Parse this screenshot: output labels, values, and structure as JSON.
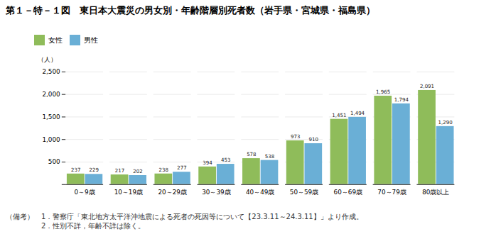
{
  "chart_data": {
    "type": "bar",
    "title": "第１－特－１図　東日本大震災の男女別・年齢階層別死者数（岩手県・宮城県・福島県）",
    "ylabel": "（人）",
    "categories": [
      "0～9歳",
      "10～19歳",
      "20～29歳",
      "30～39歳",
      "40～49歳",
      "50～59歳",
      "60～69歳",
      "70～79歳",
      "80歳以上"
    ],
    "series": [
      {
        "name": "女性",
        "color": "#8fbc5a",
        "values": [
          237,
          217,
          238,
          394,
          578,
          973,
          1451,
          1965,
          2091
        ],
        "value_labels": [
          "237",
          "217",
          "238",
          "394",
          "578",
          "973",
          "1,451",
          "1,965",
          "2,091"
        ]
      },
      {
        "name": "男性",
        "color": "#6aafd6",
        "values": [
          229,
          202,
          277,
          453,
          538,
          910,
          1494,
          1794,
          1290
        ],
        "value_labels": [
          "229",
          "202",
          "277",
          "453",
          "538",
          "910",
          "1,494",
          "1,794",
          "1,290"
        ]
      }
    ],
    "ylim": [
      0,
      2500
    ],
    "yticks": [
      {
        "value": 0,
        "label": ""
      },
      500,
      {
        "value": 1000,
        "label": "1,000"
      },
      {
        "value": 1500,
        "label": "1,500"
      },
      {
        "value": 2000,
        "label": "2,000"
      },
      {
        "value": 2500,
        "label": "2,500"
      }
    ],
    "grid": true,
    "legend": "upper left",
    "data_labels": true,
    "annotations": [
      "（備考）　1．警察庁「東北地方太平洋沖地震による死者の死因等について【23.3.11～24.3.11】」より作成。",
      "　　　　　2．性別不詳，年齢不詳は除く。"
    ]
  }
}
